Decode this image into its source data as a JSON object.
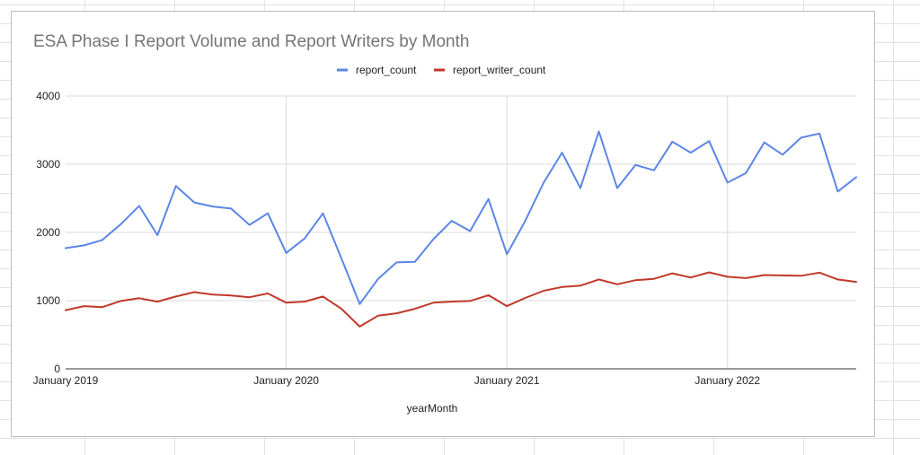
{
  "colors": {
    "report_count": "#5b86e5",
    "report_writer_count": "#c0392b",
    "gridline": "#d9d9d9",
    "axis": "#333333"
  },
  "chart_data": {
    "type": "line",
    "title": "ESA Phase I Report Volume and Report Writers by Month",
    "xlabel": "yearMonth",
    "ylabel": "",
    "ylim": [
      0,
      4000
    ],
    "yticks": [
      0,
      1000,
      2000,
      3000,
      4000
    ],
    "x_start": "2019-01",
    "x_end": "2022-08",
    "xticks": [
      "2019-01",
      "2020-01",
      "2021-01",
      "2022-01"
    ],
    "xtick_labels": [
      "January 2019",
      "January 2020",
      "January 2021",
      "January 2022"
    ],
    "grid": true,
    "legend_position": "top",
    "x": [
      "2019-01",
      "2019-02",
      "2019-03",
      "2019-04",
      "2019-05",
      "2019-06",
      "2019-07",
      "2019-08",
      "2019-09",
      "2019-10",
      "2019-11",
      "2019-12",
      "2020-01",
      "2020-02",
      "2020-03",
      "2020-04",
      "2020-05",
      "2020-06",
      "2020-07",
      "2020-08",
      "2020-09",
      "2020-10",
      "2020-11",
      "2020-12",
      "2021-01",
      "2021-02",
      "2021-03",
      "2021-04",
      "2021-05",
      "2021-06",
      "2021-07",
      "2021-08",
      "2021-09",
      "2021-10",
      "2021-11",
      "2021-12",
      "2022-01",
      "2022-02",
      "2022-03",
      "2022-04",
      "2022-05",
      "2022-06",
      "2022-07",
      "2022-08"
    ],
    "series": [
      {
        "name": "report_count",
        "values": [
          1770,
          1810,
          1890,
          2120,
          2390,
          1960,
          2680,
          2440,
          2380,
          2350,
          2110,
          2280,
          1700,
          1910,
          2280,
          1620,
          950,
          1320,
          1560,
          1570,
          1900,
          2170,
          2020,
          2490,
          1680,
          2170,
          2730,
          3170,
          2650,
          3480,
          2650,
          2990,
          2910,
          3330,
          3170,
          3340,
          2730,
          2870,
          3320,
          3140,
          3390,
          3450,
          2600,
          2810
        ]
      },
      {
        "name": "report_writer_count",
        "values": [
          860,
          920,
          905,
          995,
          1035,
          985,
          1060,
          1125,
          1090,
          1075,
          1050,
          1105,
          970,
          985,
          1060,
          880,
          620,
          780,
          815,
          880,
          970,
          985,
          995,
          1080,
          920,
          1040,
          1145,
          1200,
          1220,
          1310,
          1240,
          1300,
          1320,
          1400,
          1340,
          1415,
          1350,
          1330,
          1375,
          1370,
          1365,
          1410,
          1310,
          1275
        ]
      }
    ]
  }
}
